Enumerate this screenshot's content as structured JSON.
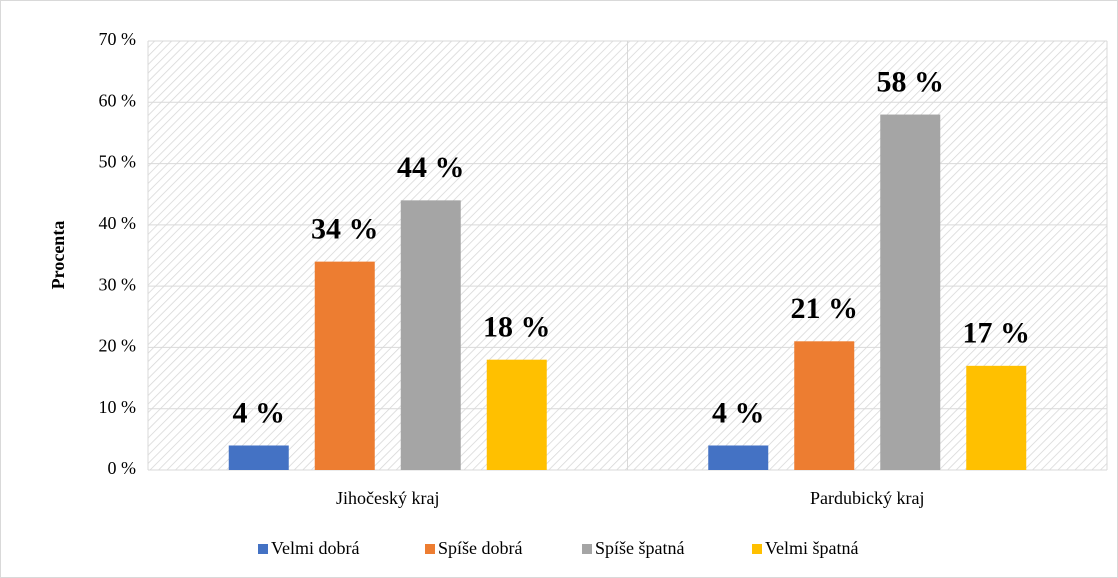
{
  "chart_data": {
    "type": "bar",
    "y_label": "Procenta",
    "categories": [
      "Jihočeský kraj",
      "Pardubický kraj"
    ],
    "series": [
      {
        "name": "Velmi dobrá",
        "color": "#4472c4",
        "values": [
          4,
          4
        ],
        "value_labels": [
          "4 %",
          "4 %"
        ]
      },
      {
        "name": "Spíše dobrá",
        "color": "#ed7d31",
        "values": [
          34,
          21
        ],
        "value_labels": [
          "34 %",
          "21 %"
        ]
      },
      {
        "name": "Spíše špatná",
        "color": "#a5a5a5",
        "values": [
          44,
          58
        ],
        "value_labels": [
          "44 %",
          "58 %"
        ]
      },
      {
        "name": "Velmi špatná",
        "color": "#ffc000",
        "values": [
          18,
          17
        ],
        "value_labels": [
          "18 %",
          "17 %"
        ]
      }
    ],
    "ylim": [
      0,
      70
    ],
    "yticks": [
      {
        "value": 0,
        "label": "0 %"
      },
      {
        "value": 10,
        "label": "10 %"
      },
      {
        "value": 20,
        "label": "20 %"
      },
      {
        "value": 30,
        "label": "30 %"
      },
      {
        "value": 40,
        "label": "40 %"
      },
      {
        "value": 50,
        "label": "50 %"
      },
      {
        "value": 60,
        "label": "60 %"
      },
      {
        "value": 70,
        "label": "70 %"
      }
    ],
    "grid": true,
    "legend": "bottom"
  }
}
